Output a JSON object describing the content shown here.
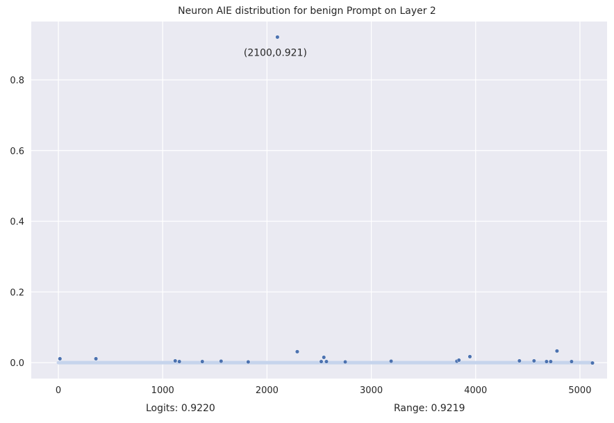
{
  "chart_data": {
    "type": "scatter",
    "title": "Neuron AIE distribution for benign Prompt on Layer 2",
    "xlabel": "",
    "ylabel": "",
    "xlim": [
      -260,
      5260
    ],
    "ylim": [
      -0.045,
      0.965
    ],
    "xticks": [
      0,
      1000,
      2000,
      3000,
      4000,
      5000
    ],
    "yticks": [
      0.0,
      0.2,
      0.4,
      0.6,
      0.8
    ],
    "ytick_labels": [
      "0.0",
      "0.2",
      "0.4",
      "0.6",
      "0.8"
    ],
    "grid": true,
    "background": "#eaeaf2",
    "point_color": "#4c72b0",
    "baseline_color": "#c6d4ec",
    "annotation": {
      "x": 2100,
      "y": 0.921,
      "text": "(2100,0.921)"
    },
    "baseline_range": [
      0,
      5120
    ],
    "points": [
      {
        "x": 15,
        "y": 0.011
      },
      {
        "x": 360,
        "y": 0.011
      },
      {
        "x": 1120,
        "y": 0.005
      },
      {
        "x": 1160,
        "y": 0.003
      },
      {
        "x": 1380,
        "y": 0.003
      },
      {
        "x": 1560,
        "y": 0.004
      },
      {
        "x": 1820,
        "y": 0.002
      },
      {
        "x": 2100,
        "y": 0.921
      },
      {
        "x": 2290,
        "y": 0.031
      },
      {
        "x": 2520,
        "y": 0.003
      },
      {
        "x": 2545,
        "y": 0.015
      },
      {
        "x": 2570,
        "y": 0.003
      },
      {
        "x": 2750,
        "y": 0.002
      },
      {
        "x": 3190,
        "y": 0.004
      },
      {
        "x": 3820,
        "y": 0.004
      },
      {
        "x": 3840,
        "y": 0.007
      },
      {
        "x": 3945,
        "y": 0.017
      },
      {
        "x": 4420,
        "y": 0.005
      },
      {
        "x": 4560,
        "y": 0.005
      },
      {
        "x": 4680,
        "y": 0.003
      },
      {
        "x": 4720,
        "y": 0.003
      },
      {
        "x": 4780,
        "y": 0.033
      },
      {
        "x": 4920,
        "y": 0.003
      },
      {
        "x": 5120,
        "y": -0.001
      }
    ]
  },
  "footer": {
    "logits": "Logits: 0.9220",
    "range": "Range: 0.9219"
  }
}
